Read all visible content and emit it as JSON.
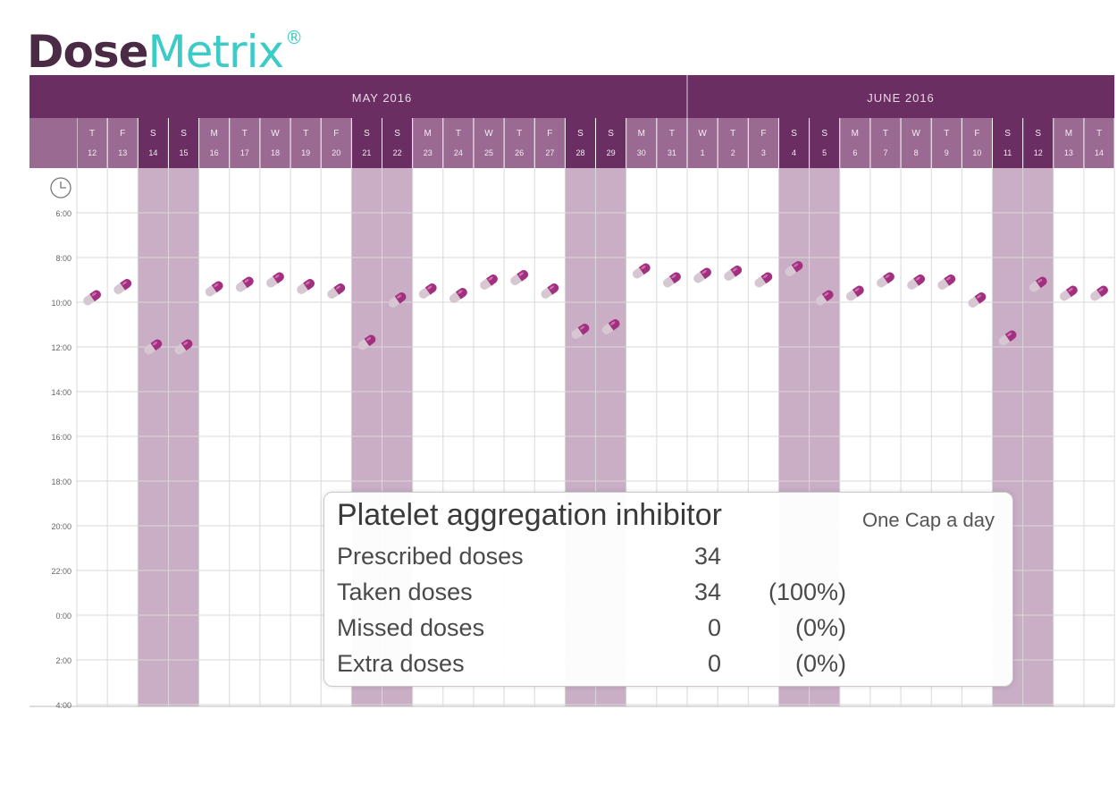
{
  "logo": {
    "part1": "Dose",
    "part2": "Metrix",
    "mark": "®"
  },
  "colors": {
    "header": "#6b2e63",
    "header_light": "#9a6a93",
    "weekend": "#c9aec5",
    "pill_head": "#a2307f",
    "pill_tail": "#d6c7d2",
    "grid": "#d9d9d9"
  },
  "chart_data": {
    "type": "scatter",
    "months": [
      {
        "label": "MAY 2016",
        "days": 20
      },
      {
        "label": "JUNE 2016",
        "days": 14
      }
    ],
    "days": [
      {
        "dow": "T",
        "date": "12"
      },
      {
        "dow": "F",
        "date": "13"
      },
      {
        "dow": "S",
        "date": "14",
        "weekend": true
      },
      {
        "dow": "S",
        "date": "15",
        "weekend": true
      },
      {
        "dow": "M",
        "date": "16"
      },
      {
        "dow": "T",
        "date": "17"
      },
      {
        "dow": "W",
        "date": "18"
      },
      {
        "dow": "T",
        "date": "19"
      },
      {
        "dow": "F",
        "date": "20"
      },
      {
        "dow": "S",
        "date": "21",
        "weekend": true
      },
      {
        "dow": "S",
        "date": "22",
        "weekend": true
      },
      {
        "dow": "M",
        "date": "23"
      },
      {
        "dow": "T",
        "date": "24"
      },
      {
        "dow": "W",
        "date": "25"
      },
      {
        "dow": "T",
        "date": "26"
      },
      {
        "dow": "F",
        "date": "27"
      },
      {
        "dow": "S",
        "date": "28",
        "weekend": true
      },
      {
        "dow": "S",
        "date": "29",
        "weekend": true
      },
      {
        "dow": "M",
        "date": "30"
      },
      {
        "dow": "T",
        "date": "31"
      },
      {
        "dow": "W",
        "date": "1"
      },
      {
        "dow": "T",
        "date": "2"
      },
      {
        "dow": "F",
        "date": "3"
      },
      {
        "dow": "S",
        "date": "4",
        "weekend": true
      },
      {
        "dow": "S",
        "date": "5",
        "weekend": true
      },
      {
        "dow": "M",
        "date": "6"
      },
      {
        "dow": "T",
        "date": "7"
      },
      {
        "dow": "W",
        "date": "8"
      },
      {
        "dow": "T",
        "date": "9"
      },
      {
        "dow": "F",
        "date": "10"
      },
      {
        "dow": "S",
        "date": "11",
        "weekend": true
      },
      {
        "dow": "S",
        "date": "12",
        "weekend": true
      },
      {
        "dow": "M",
        "date": "13"
      },
      {
        "dow": "T",
        "date": "14"
      }
    ],
    "y_ticks": [
      "6:00",
      "8:00",
      "10:00",
      "12:00",
      "14:00",
      "16:00",
      "18:00",
      "20:00",
      "22:00",
      "0:00",
      "2:00",
      "4:00"
    ],
    "y_range": [
      6,
      28
    ],
    "dose_times": [
      9.8,
      9.3,
      12.0,
      12.0,
      9.4,
      9.2,
      9.0,
      9.3,
      9.5,
      11.8,
      9.9,
      9.5,
      9.7,
      9.1,
      8.9,
      9.5,
      11.3,
      11.1,
      8.6,
      9.0,
      8.8,
      8.7,
      9.0,
      8.5,
      9.8,
      9.6,
      9.0,
      9.1,
      9.1,
      9.9,
      11.6,
      9.2,
      9.6,
      9.6
    ]
  },
  "summary": {
    "drug": "Platelet aggregation inhibitor",
    "regimen": "One Cap a day",
    "rows": [
      {
        "label": "Prescribed doses",
        "value": "34",
        "pct": ""
      },
      {
        "label": "Taken doses",
        "value": "34",
        "pct": "(100%)"
      },
      {
        "label": "Missed doses",
        "value": "0",
        "pct": "(0%)"
      },
      {
        "label": "Extra doses",
        "value": "0",
        "pct": "(0%)"
      }
    ]
  }
}
